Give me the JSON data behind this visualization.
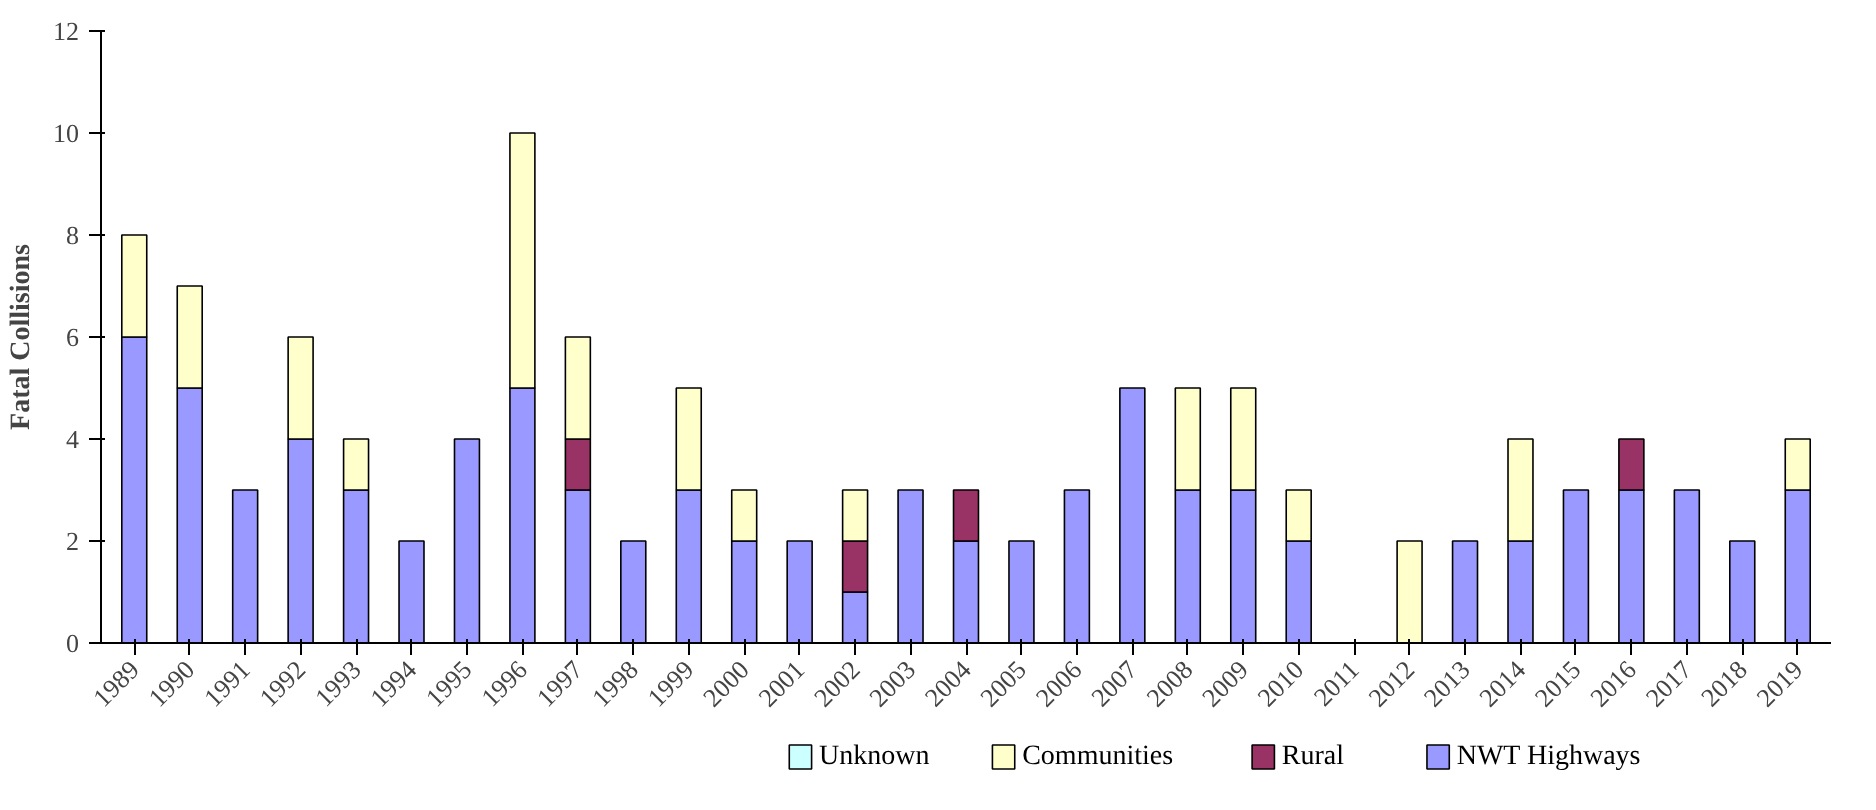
{
  "chart_data": {
    "type": "bar",
    "stacked": true,
    "ylabel": "Fatal Collisions",
    "categories": [
      "1989",
      "1990",
      "1991",
      "1992",
      "1993",
      "1994",
      "1995",
      "1996",
      "1997",
      "1998",
      "1999",
      "2000",
      "2001",
      "2002",
      "2003",
      "2004",
      "2005",
      "2006",
      "2007",
      "2008",
      "2009",
      "2010",
      "2011",
      "2012",
      "2013",
      "2014",
      "2015",
      "2016",
      "2017",
      "2018",
      "2019"
    ],
    "series": [
      {
        "name": "NWT Highways",
        "color": "#9999ff",
        "values": [
          6,
          5,
          3,
          4,
          3,
          2,
          4,
          5,
          3,
          2,
          3,
          2,
          2,
          1,
          3,
          2,
          2,
          3,
          5,
          3,
          3,
          2,
          null,
          null,
          2,
          2,
          3,
          3,
          3,
          2,
          3
        ]
      },
      {
        "name": "Rural",
        "color": "#993366",
        "values": [
          null,
          null,
          null,
          null,
          null,
          null,
          null,
          null,
          1,
          null,
          null,
          null,
          null,
          1,
          null,
          1,
          null,
          null,
          null,
          null,
          null,
          null,
          null,
          null,
          null,
          null,
          null,
          1,
          null,
          null,
          null
        ]
      },
      {
        "name": "Communities",
        "color": "#ffffcc",
        "values": [
          2,
          2,
          null,
          2,
          1,
          null,
          null,
          5,
          2,
          null,
          2,
          1,
          null,
          1,
          null,
          null,
          null,
          null,
          null,
          2,
          2,
          1,
          null,
          2,
          null,
          2,
          null,
          null,
          null,
          null,
          1
        ]
      },
      {
        "name": "Unknown",
        "color": "#ccffff",
        "values": [
          null,
          null,
          null,
          null,
          null,
          null,
          null,
          null,
          null,
          null,
          null,
          null,
          null,
          null,
          null,
          null,
          null,
          null,
          null,
          null,
          null,
          null,
          null,
          null,
          null,
          null,
          null,
          null,
          null,
          null,
          null
        ]
      }
    ],
    "ylim": [
      0,
      12
    ],
    "yticks": [
      0,
      2,
      4,
      6,
      8,
      10,
      12
    ],
    "legend": "bottom"
  }
}
